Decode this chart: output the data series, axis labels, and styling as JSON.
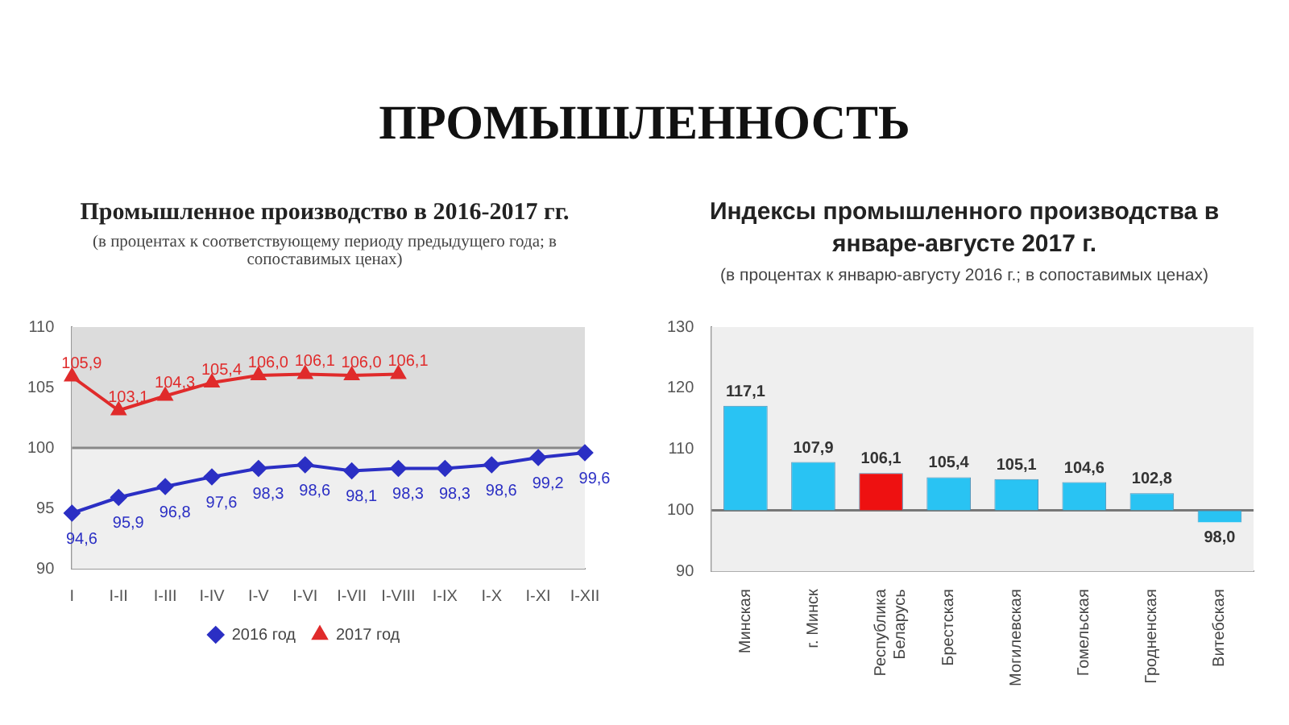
{
  "chart_data": [
    {
      "type": "other",
      "title": "ПРОМЫШЛЕННОСТЬ"
    },
    {
      "type": "line",
      "title": "Промышленное производство в 2016-2017 гг.",
      "subtitle": "(в процентах к соответствующему периоду предыдущего года; в сопоставимых ценах)",
      "categories": [
        "I",
        "I-II",
        "I-III",
        "I-IV",
        "I-V",
        "I-VI",
        "I-VII",
        "I-VIII",
        "I-IX",
        "I-X",
        "I-XI",
        "I-XII"
      ],
      "series": [
        {
          "name": "2016 год",
          "color": "#2b2fc4",
          "marker": "diamond",
          "values": [
            94.6,
            95.9,
            96.8,
            97.6,
            98.3,
            98.6,
            98.1,
            98.3,
            98.3,
            98.6,
            99.2,
            99.6
          ],
          "value_labels": [
            "94,6",
            "95,9",
            "96,8",
            "97,6",
            "98,3",
            "98,6",
            "98,1",
            "98,3",
            "98,3",
            "98,6",
            "99,2",
            "99,6"
          ]
        },
        {
          "name": "2017 год",
          "color": "#e02b2b",
          "marker": "triangle",
          "values": [
            105.9,
            103.1,
            104.3,
            105.4,
            106.0,
            106.1,
            106.0,
            106.1,
            null,
            null,
            null,
            null
          ],
          "value_labels": [
            "105,9",
            "103,1",
            "104,3",
            "105,4",
            "106,0",
            "106,1",
            "106,0",
            "106,1",
            null,
            null,
            null,
            null
          ]
        }
      ],
      "ylim": [
        90,
        110
      ],
      "yticks": [
        90,
        95,
        100,
        105,
        110
      ],
      "legend": "bottom",
      "ref_lines": [
        {
          "axis": "y",
          "value": 100,
          "color": "#888888"
        }
      ],
      "bands": [
        {
          "axis": "y",
          "from": 100,
          "to": 110,
          "color": "#dcdcdc"
        }
      ]
    },
    {
      "type": "bar",
      "title": "Индексы промышленного производства в январе-августе 2017 г.",
      "subtitle": "(в процентах к январю-августу 2016 г.;  в сопоставимых ценах)",
      "categories": [
        "Минская",
        "г. Минск",
        "Республика Беларусь",
        "Брестская",
        "Могилевская",
        "Гомельская",
        "Гродненская",
        "Витебская"
      ],
      "base": [
        100,
        100,
        100,
        100,
        100,
        100,
        100,
        100
      ],
      "values": [
        17.1,
        7.9,
        6.1,
        5.4,
        5.1,
        4.6,
        2.8,
        -2.0
      ],
      "value_labels": [
        "117,1",
        "107,9",
        "106,1",
        "105,4",
        "105,1",
        "104,6",
        "102,8",
        "98,0"
      ],
      "colors": [
        "#29c3f3",
        "#29c3f3",
        "#ee1111",
        "#29c3f3",
        "#29c3f3",
        "#29c3f3",
        "#29c3f3",
        "#29c3f3"
      ],
      "ylim": [
        90,
        130
      ],
      "yticks": [
        90,
        100,
        110,
        120,
        130
      ],
      "ref_lines": [
        {
          "axis": "y",
          "value": 100,
          "color": "#777777"
        }
      ]
    }
  ]
}
